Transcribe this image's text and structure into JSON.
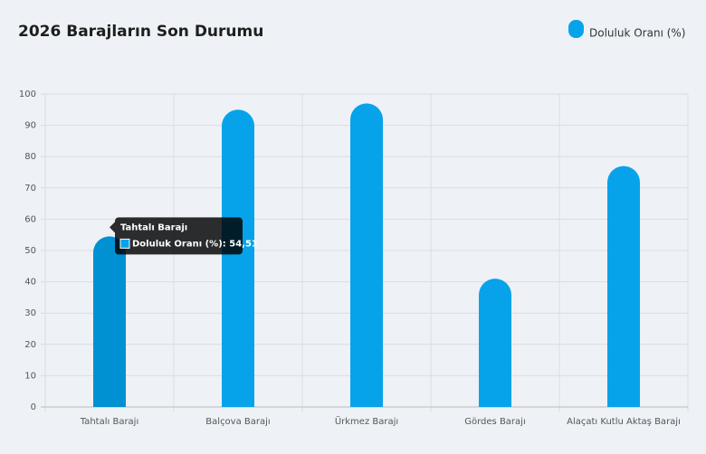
{
  "chart_data": {
    "type": "bar",
    "title": "2026 Barajların Son Durumu",
    "categories": [
      "Tahtalı Barajı",
      "Balçova Barajı",
      "Ürkmez Barajı",
      "Gördes Barajı",
      "Alaçatı Kutlu Aktaş Barajı"
    ],
    "series": [
      {
        "name": "Doluluk Oranı (%)",
        "color": "#06a3ea",
        "values": [
          54.51,
          95,
          97,
          41,
          77
        ],
        "value_labels": [
          "54,51",
          null,
          null,
          null,
          null
        ]
      }
    ],
    "ylim": [
      0,
      100
    ],
    "yticks": [
      0,
      10,
      20,
      30,
      40,
      50,
      60,
      70,
      80,
      90,
      100
    ],
    "grid": true,
    "legend": "top-right"
  }
}
